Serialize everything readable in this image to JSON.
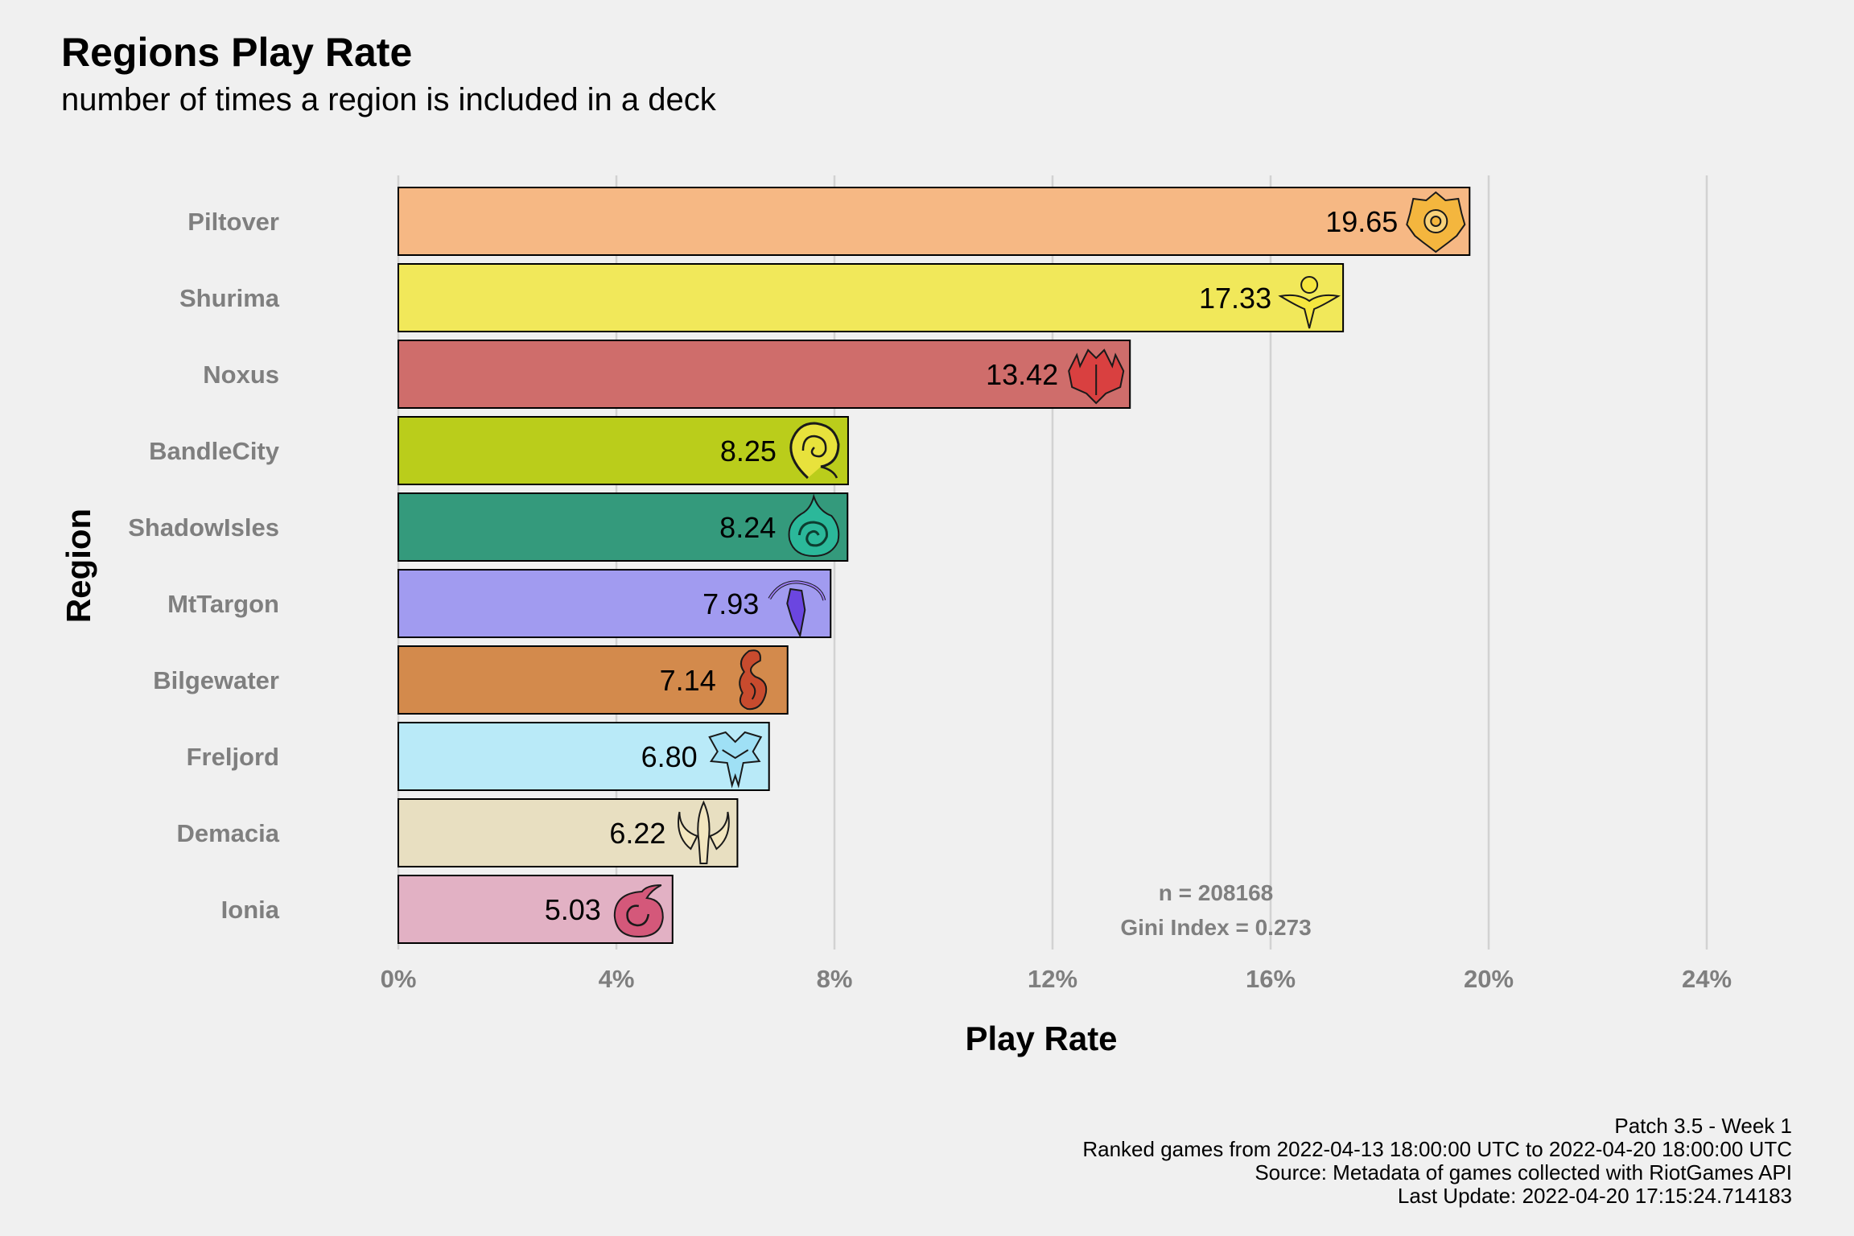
{
  "chart_data": {
    "type": "bar",
    "orientation": "horizontal",
    "title": "Regions Play Rate",
    "subtitle": "number of times a region is included in a deck",
    "xlabel": "Play Rate",
    "ylabel": "Region",
    "xlim": [
      0,
      0.25
    ],
    "x_ticks": [
      0,
      0.04,
      0.08,
      0.12,
      0.16,
      0.2,
      0.24
    ],
    "x_tick_labels": [
      "0%",
      "4%",
      "8%",
      "12%",
      "16%",
      "20%",
      "24%"
    ],
    "grid": "vertical major",
    "legend": "none",
    "categories": [
      "Piltover",
      "Shurima",
      "Noxus",
      "BandleCity",
      "ShadowIsles",
      "MtTargon",
      "Bilgewater",
      "Freljord",
      "Demacia",
      "Ionia"
    ],
    "values": [
      19.65,
      17.33,
      13.42,
      8.25,
      8.24,
      7.93,
      7.14,
      6.8,
      6.22,
      5.03
    ],
    "value_labels": [
      "19.65",
      "17.33",
      "13.42",
      "8.25",
      "8.24",
      "7.93",
      "7.14",
      "6.80",
      "6.22",
      "5.03"
    ],
    "colors": [
      "#f6b884",
      "#f1e85a",
      "#cf6d6b",
      "#bacd1b",
      "#349a7c",
      "#a19bf0",
      "#d38a4c",
      "#b9eaf8",
      "#e8dfc1",
      "#e2b1c4"
    ],
    "icons": [
      "piltover-icon",
      "shurima-icon",
      "noxus-icon",
      "bandlecity-icon",
      "shadowisles-icon",
      "mttargon-icon",
      "bilgewater-icon",
      "freljord-icon",
      "demacia-icon",
      "ionia-icon"
    ],
    "icon_colors": [
      "#f4b63e",
      "#f5e63f",
      "#d94040",
      "#e8e23c",
      "#2bb89a",
      "#6b46e0",
      "#c84b2e",
      "#9fe0f5",
      "#f2e6bf",
      "#d4587a"
    ],
    "annotations": [
      "n = 208168",
      "Gini Index = 0.273"
    ],
    "caption": [
      "Patch 3.5 - Week 1",
      "Ranked games from 2022-04-13 18:00:00 UTC to 2022-04-20 18:00:00 UTC",
      "Source: Metadata of games collected with RiotGames API",
      "Last Update: 2022-04-20 17:15:24.714183"
    ]
  }
}
